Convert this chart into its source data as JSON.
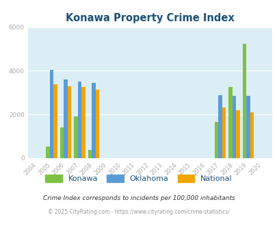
{
  "title": "Konawa Property Crime Index",
  "years": [
    2004,
    2005,
    2006,
    2007,
    2008,
    2009,
    2010,
    2011,
    2012,
    2013,
    2014,
    2015,
    2016,
    2017,
    2018,
    2019,
    2020
  ],
  "konawa": [
    null,
    530,
    1400,
    1900,
    380,
    null,
    null,
    null,
    null,
    null,
    null,
    null,
    null,
    1650,
    3250,
    5250,
    null
  ],
  "oklahoma": [
    null,
    4050,
    3600,
    3500,
    3450,
    null,
    null,
    null,
    null,
    null,
    null,
    null,
    null,
    2880,
    2840,
    2840,
    null
  ],
  "national": [
    null,
    3380,
    3280,
    3250,
    3150,
    null,
    null,
    null,
    null,
    null,
    null,
    null,
    null,
    2330,
    2180,
    2100,
    null
  ],
  "color_konawa": "#7dc242",
  "color_oklahoma": "#5b9bd5",
  "color_national": "#f0a500",
  "plot_bg": "#dceef5",
  "ylim": [
    0,
    6000
  ],
  "yticks": [
    0,
    2000,
    4000,
    6000
  ],
  "legend_labels": [
    "Konawa",
    "Oklahoma",
    "National"
  ],
  "footnote1": "Crime Index corresponds to incidents per 100,000 inhabitants",
  "footnote2": "© 2025 CityRating.com - https://www.cityrating.com/crime-statistics/",
  "title_color": "#1a5276",
  "tick_color": "#aaaaaa",
  "footnote1_color": "#333333",
  "footnote2_color": "#999999",
  "grid_color": "#ffffff"
}
